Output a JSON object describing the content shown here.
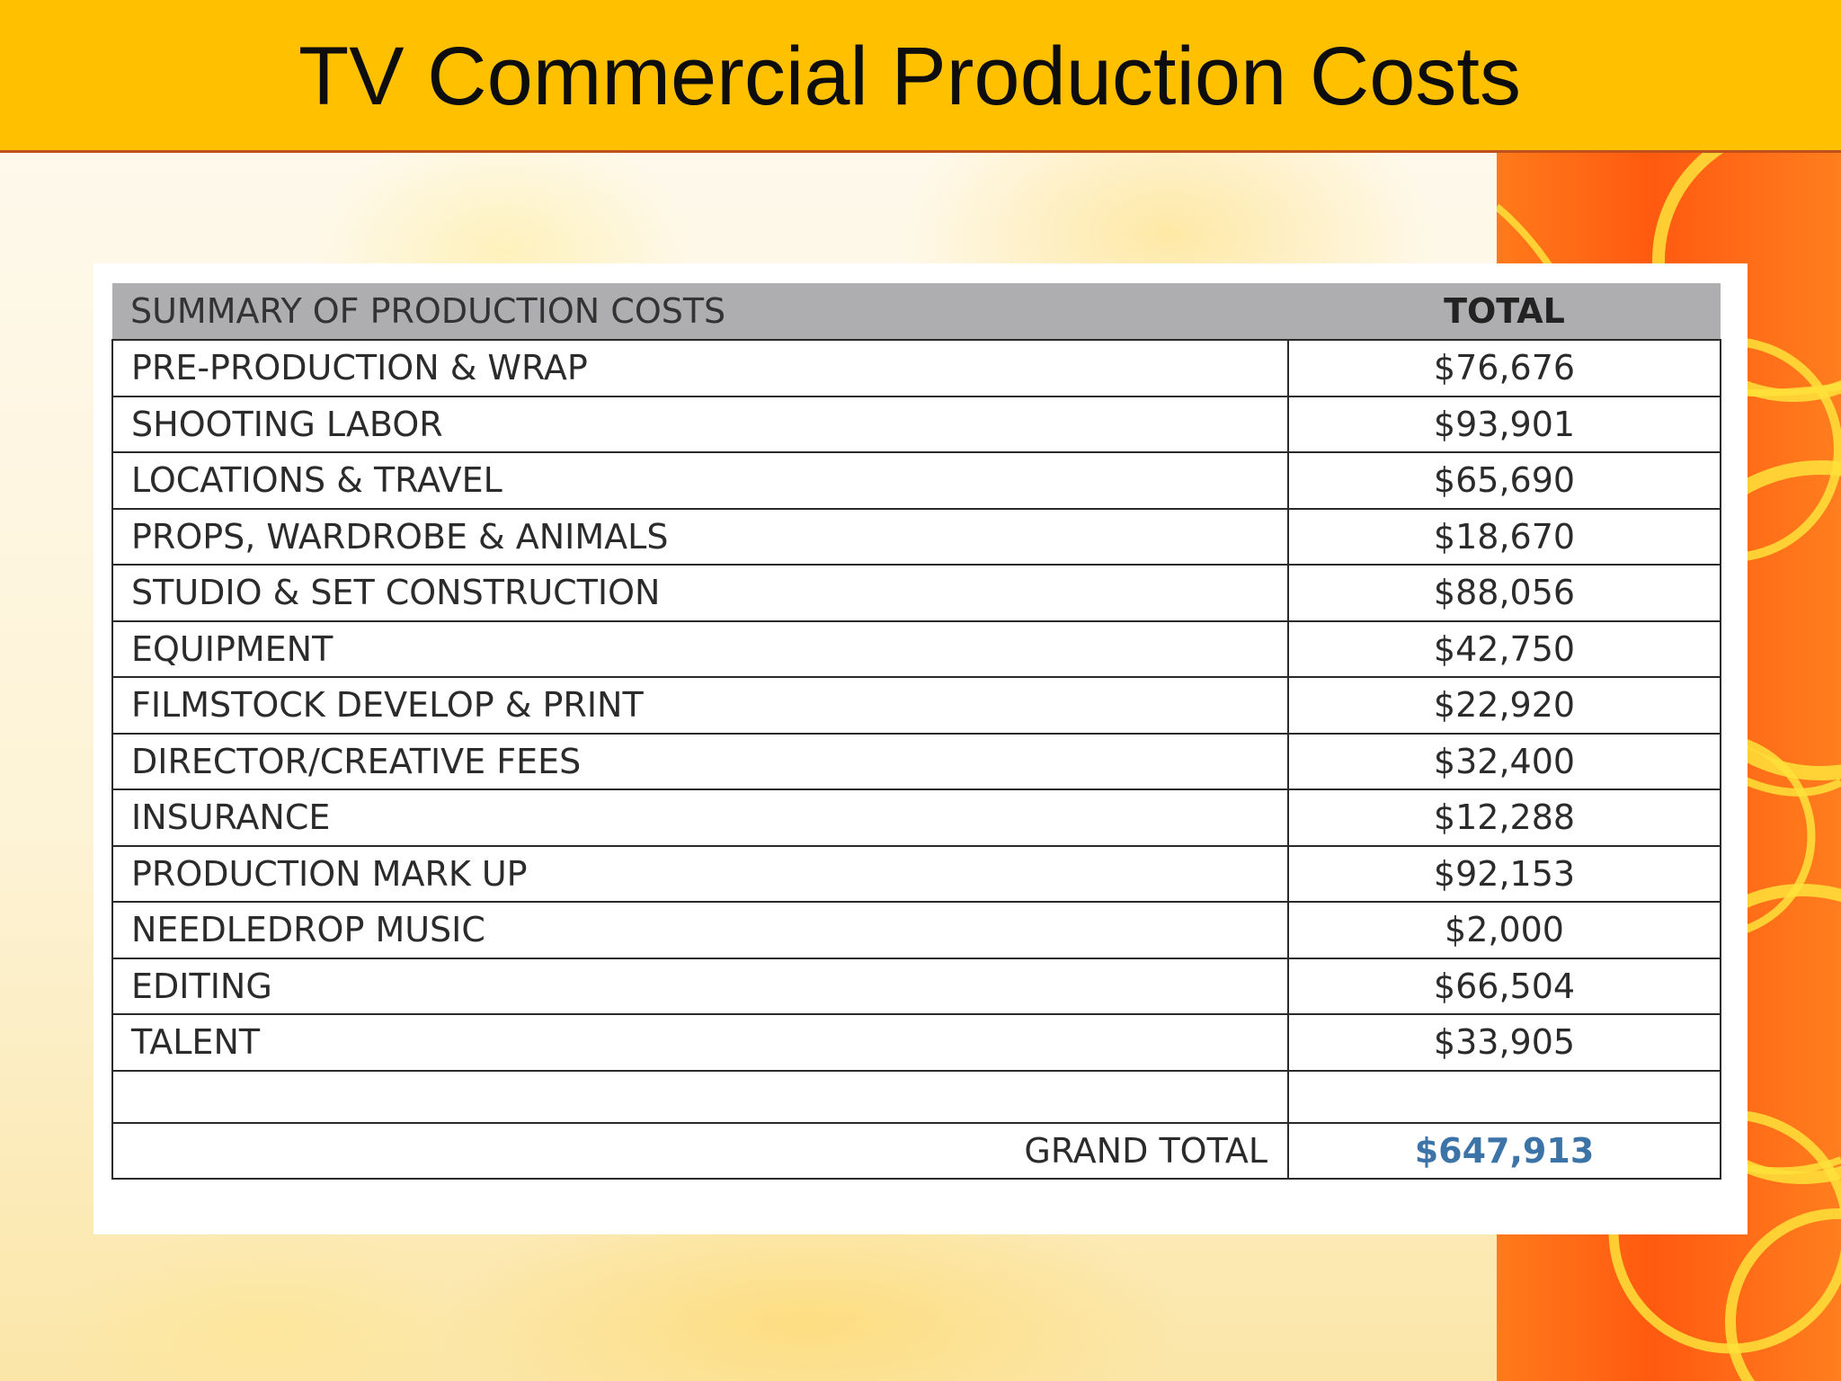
{
  "title": "TV Commercial Production Costs",
  "table": {
    "header": {
      "summary_label": "SUMMARY OF  PRODUCTION COSTS",
      "total_label": "TOTAL"
    },
    "rows": [
      {
        "item": "PRE-PRODUCTION & WRAP",
        "total": "$76,676"
      },
      {
        "item": "SHOOTING LABOR",
        "total": "$93,901"
      },
      {
        "item": "LOCATIONS & TRAVEL",
        "total": "$65,690"
      },
      {
        "item": "PROPS, WARDROBE & ANIMALS",
        "total": "$18,670"
      },
      {
        "item": "STUDIO & SET CONSTRUCTION",
        "total": "$88,056"
      },
      {
        "item": "EQUIPMENT",
        "total": "$42,750"
      },
      {
        "item": "FILMSTOCK DEVELOP & PRINT",
        "total": "$22,920"
      },
      {
        "item": "DIRECTOR/CREATIVE FEES",
        "total": "$32,400"
      },
      {
        "item": "INSURANCE",
        "total": "$12,288"
      },
      {
        "item": "PRODUCTION MARK UP",
        "total": "$92,153"
      },
      {
        "item": "NEEDLEDROP MUSIC",
        "total": "$2,000"
      },
      {
        "item": "EDITING",
        "total": "$66,504"
      },
      {
        "item": "TALENT",
        "total": "$33,905"
      }
    ],
    "grand_total": {
      "label": "GRAND TOTAL",
      "value": "$647,913"
    }
  },
  "colors": {
    "title_bar": "#ffc000",
    "header_row": "#aeaeb1",
    "grand_total_value": "#3d74a8",
    "side_stripe": "#ff5a10"
  }
}
